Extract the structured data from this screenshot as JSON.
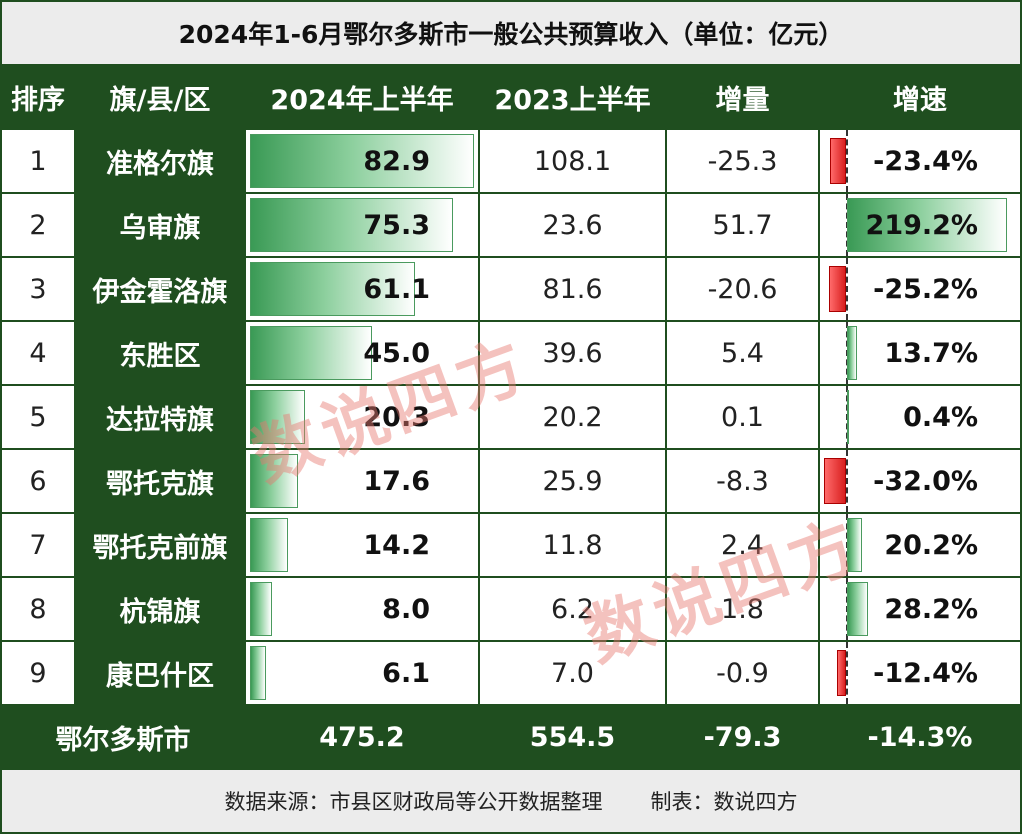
{
  "title": "2024年1-6月鄂尔多斯市一般公共预算收入（单位：亿元）",
  "headers": [
    "排序",
    "旗/县/区",
    "2024年上半年",
    "2023上半年",
    "增量",
    "增速"
  ],
  "chart_data": {
    "type": "table",
    "title": "2024年1-6月鄂尔多斯市一般公共预算收入（单位：亿元）",
    "columns": [
      "排序",
      "旗/县/区",
      "2024年上半年",
      "2023上半年",
      "增量",
      "增速"
    ],
    "rows": [
      {
        "rank": "1",
        "name": "准格尔旗",
        "y2024": 82.9,
        "y2024_text": "82.9",
        "y2023": "108.1",
        "delta": "-25.3",
        "rate": -23.4,
        "rate_text": "-23.4%"
      },
      {
        "rank": "2",
        "name": "乌审旗",
        "y2024": 75.3,
        "y2024_text": "75.3",
        "y2023": "23.6",
        "delta": "51.7",
        "rate": 219.2,
        "rate_text": "219.2%"
      },
      {
        "rank": "3",
        "name": "伊金霍洛旗",
        "y2024": 61.1,
        "y2024_text": "61.1",
        "y2023": "81.6",
        "delta": "-20.6",
        "rate": -25.2,
        "rate_text": "-25.2%"
      },
      {
        "rank": "4",
        "name": "东胜区",
        "y2024": 45.0,
        "y2024_text": "45.0",
        "y2023": "39.6",
        "delta": "5.4",
        "rate": 13.7,
        "rate_text": "13.7%"
      },
      {
        "rank": "5",
        "name": "达拉特旗",
        "y2024": 20.3,
        "y2024_text": "20.3",
        "y2023": "20.2",
        "delta": "0.1",
        "rate": 0.4,
        "rate_text": "0.4%"
      },
      {
        "rank": "6",
        "name": "鄂托克旗",
        "y2024": 17.6,
        "y2024_text": "17.6",
        "y2023": "25.9",
        "delta": "-8.3",
        "rate": -32.0,
        "rate_text": "-32.0%"
      },
      {
        "rank": "7",
        "name": "鄂托克前旗",
        "y2024": 14.2,
        "y2024_text": "14.2",
        "y2023": "11.8",
        "delta": "2.4",
        "rate": 20.2,
        "rate_text": "20.2%"
      },
      {
        "rank": "8",
        "name": "杭锦旗",
        "y2024": 8.0,
        "y2024_text": "8.0",
        "y2023": "6.2",
        "delta": "1.8",
        "rate": 28.2,
        "rate_text": "28.2%"
      },
      {
        "rank": "9",
        "name": "康巴什区",
        "y2024": 6.1,
        "y2024_text": "6.1",
        "y2023": "7.0",
        "delta": "-0.9",
        "rate": -12.4,
        "rate_text": "-12.4%"
      }
    ],
    "total": {
      "name": "鄂尔多斯市",
      "y2024": "475.2",
      "y2023": "554.5",
      "delta": "-79.3",
      "rate": "-14.3%"
    }
  },
  "footer": {
    "source": "数据来源：市县区财政局等公开数据整理",
    "maker": "制表：数说四方"
  },
  "watermark": "数说四方",
  "colors": {
    "dark_green": "#1f4e1f",
    "bar_green": "#3a9a55",
    "neg_red": "#d81f1f"
  }
}
